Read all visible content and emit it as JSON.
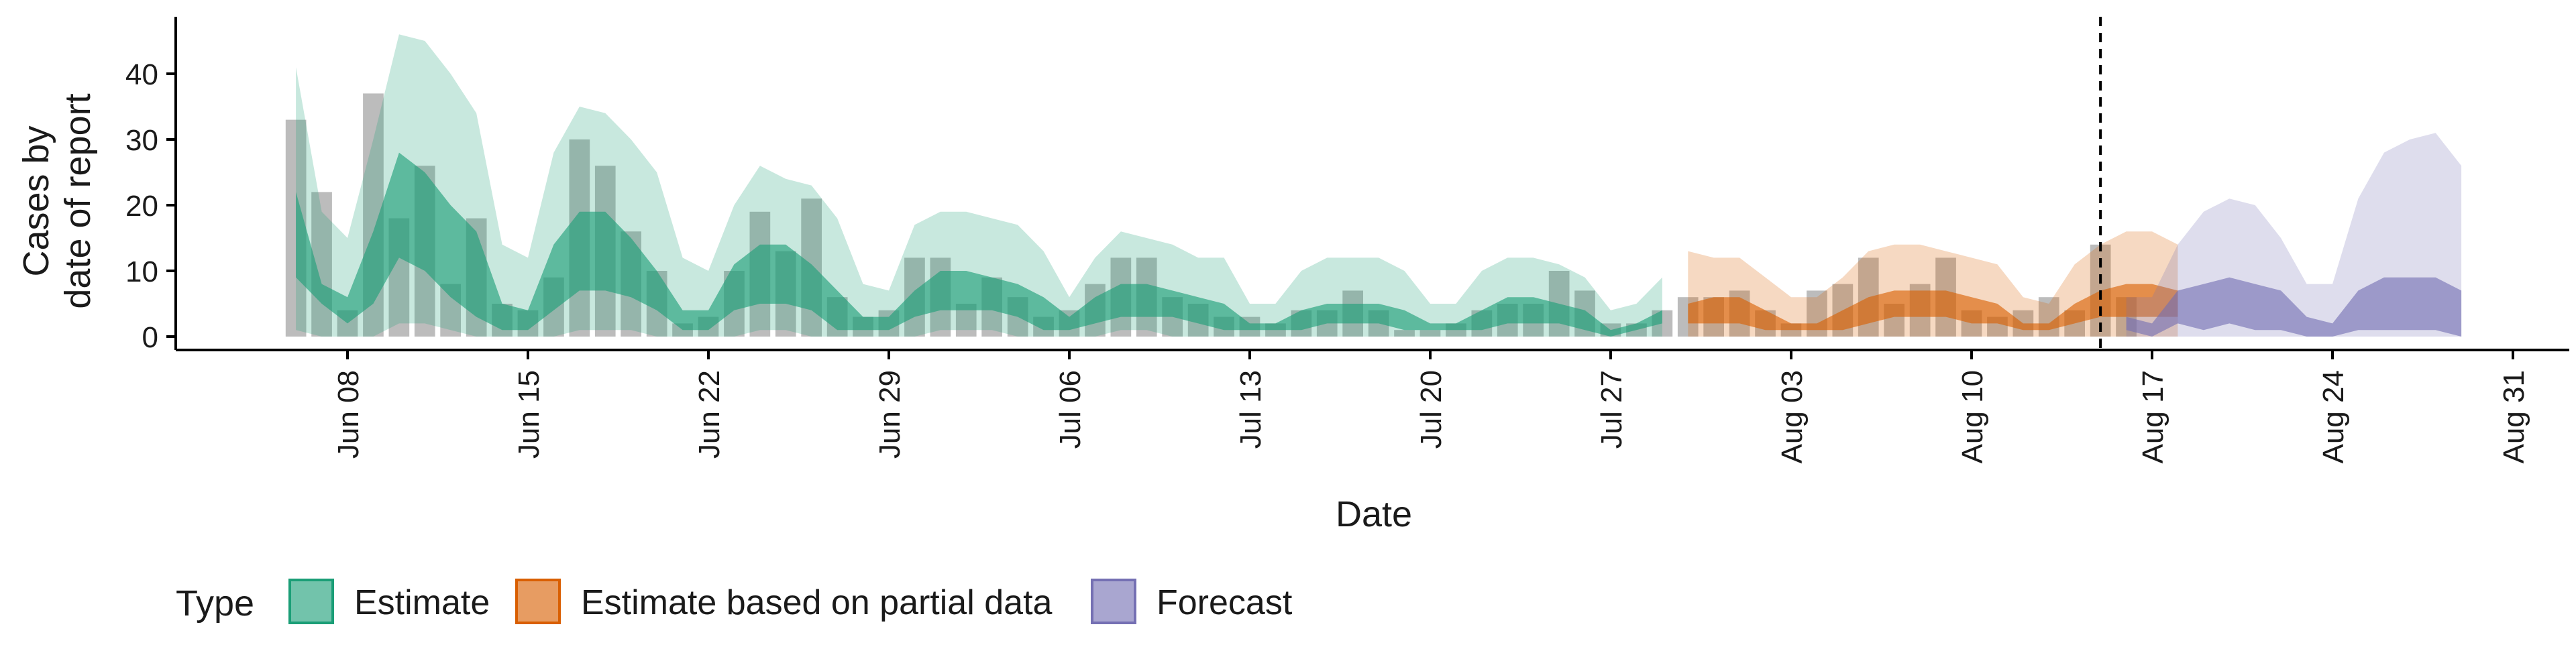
{
  "chart_data": {
    "type": "area",
    "ylabel": [
      "Cases by",
      "date of report"
    ],
    "xlabel": "Date",
    "ylim": [
      -2,
      48
    ],
    "yticks": [
      0,
      10,
      20,
      30,
      40
    ],
    "xlim": [
      "2020-06-02",
      "2020-09-01"
    ],
    "xticks": [
      {
        "date": "2020-06-08",
        "label": "Jun 08"
      },
      {
        "date": "2020-06-15",
        "label": "Jun 15"
      },
      {
        "date": "2020-06-22",
        "label": "Jun 22"
      },
      {
        "date": "2020-06-29",
        "label": "Jun 29"
      },
      {
        "date": "2020-07-06",
        "label": "Jul 06"
      },
      {
        "date": "2020-07-13",
        "label": "Jul 13"
      },
      {
        "date": "2020-07-20",
        "label": "Jul 20"
      },
      {
        "date": "2020-07-27",
        "label": "Jul 27"
      },
      {
        "date": "2020-08-03",
        "label": "Aug 03"
      },
      {
        "date": "2020-08-10",
        "label": "Aug 10"
      },
      {
        "date": "2020-08-17",
        "label": "Aug 17"
      },
      {
        "date": "2020-08-24",
        "label": "Aug 24"
      },
      {
        "date": "2020-08-31",
        "label": "Aug 31"
      }
    ],
    "forecast_start": "2020-08-15",
    "colors": {
      "Estimate": "#1b9e77",
      "Estimate based on partial data": "#d95f02",
      "Forecast": "#7570b3",
      "bars": "#a6a6a6"
    },
    "legend": {
      "title": "Type",
      "position": "bottom",
      "items": [
        "Estimate",
        "Estimate based on partial data",
        "Forecast"
      ]
    },
    "reported_cases": {
      "start": "2020-06-06",
      "values": [
        33,
        22,
        4,
        37,
        18,
        26,
        8,
        18,
        5,
        4,
        9,
        30,
        26,
        16,
        10,
        2,
        3,
        10,
        19,
        13,
        21,
        6,
        3,
        4,
        12,
        12,
        5,
        9,
        6,
        3,
        4,
        8,
        12,
        12,
        6,
        5,
        3,
        3,
        2,
        4,
        4,
        7,
        4,
        1,
        1,
        2,
        4,
        5,
        5,
        10,
        7,
        2,
        2,
        4,
        6,
        6,
        7,
        4,
        2,
        7,
        8,
        12,
        5,
        8,
        12,
        4,
        3,
        4,
        6,
        4,
        14,
        6
      ]
    },
    "series": [
      {
        "name": "Estimate",
        "start": "2020-06-06",
        "upper90": [
          41,
          19,
          15,
          30,
          46,
          45,
          40,
          34,
          14,
          12,
          28,
          35,
          34,
          30,
          25,
          12,
          10,
          20,
          26,
          24,
          23,
          18,
          8,
          7,
          17,
          19,
          19,
          18,
          17,
          13,
          6,
          12,
          16,
          15,
          14,
          12,
          12,
          5,
          5,
          10,
          12,
          12,
          12,
          10,
          5,
          5,
          10,
          12,
          12,
          11,
          9,
          4,
          5,
          9
        ],
        "upper50": [
          22,
          8,
          6,
          16,
          28,
          25,
          20,
          16,
          5,
          4,
          14,
          19,
          19,
          15,
          10,
          4,
          4,
          11,
          14,
          14,
          11,
          7,
          3,
          3,
          7,
          10,
          10,
          9,
          8,
          6,
          3,
          6,
          8,
          8,
          7,
          6,
          5,
          2,
          2,
          4,
          5,
          5,
          5,
          4,
          2,
          2,
          4,
          6,
          6,
          5,
          4,
          1,
          2,
          4
        ],
        "lower50": [
          9,
          5,
          2,
          5,
          12,
          10,
          6,
          3,
          1,
          1,
          4,
          7,
          7,
          6,
          4,
          1,
          1,
          4,
          5,
          5,
          4,
          1,
          1,
          1,
          3,
          4,
          4,
          4,
          3,
          1,
          1,
          2,
          3,
          3,
          3,
          2,
          1,
          1,
          1,
          1,
          2,
          2,
          2,
          1,
          1,
          1,
          1,
          2,
          2,
          2,
          1,
          0,
          1,
          2
        ],
        "lower90": [
          1,
          0,
          0,
          0,
          2,
          2,
          1,
          0,
          0,
          0,
          0,
          1,
          1,
          1,
          0,
          0,
          0,
          0,
          1,
          1,
          0,
          0,
          0,
          0,
          0,
          1,
          1,
          1,
          0,
          0,
          0,
          0,
          1,
          1,
          0,
          0,
          0,
          0,
          0,
          0,
          0,
          0,
          0,
          0,
          0,
          0,
          0,
          0,
          0,
          0,
          0,
          0,
          0,
          0
        ]
      },
      {
        "name": "Estimate based on partial data",
        "start": "2020-07-30",
        "upper90": [
          13,
          12,
          12,
          9,
          6,
          6,
          9,
          13,
          14,
          14,
          13,
          12,
          11,
          6,
          5,
          11,
          14,
          16,
          16,
          14
        ],
        "upper50": [
          5,
          6,
          6,
          4,
          2,
          2,
          4,
          6,
          7,
          7,
          7,
          6,
          5,
          2,
          2,
          5,
          7,
          8,
          8,
          7
        ],
        "lower50": [
          2,
          2,
          2,
          1,
          1,
          1,
          1,
          2,
          3,
          3,
          3,
          2,
          2,
          1,
          1,
          2,
          3,
          3,
          3,
          3
        ],
        "lower90": [
          0,
          0,
          0,
          0,
          0,
          0,
          0,
          0,
          0,
          0,
          0,
          0,
          0,
          0,
          0,
          0,
          0,
          0,
          0,
          0
        ]
      },
      {
        "name": "Forecast",
        "start": "2020-08-16",
        "upper90": [
          6,
          6,
          14,
          19,
          21,
          20,
          15,
          8,
          8,
          21,
          28,
          30,
          31,
          26
        ],
        "upper50": [
          3,
          2,
          7,
          8,
          9,
          8,
          7,
          3,
          2,
          7,
          9,
          9,
          9,
          7
        ],
        "lower50": [
          1,
          0,
          2,
          1,
          2,
          1,
          1,
          0,
          0,
          1,
          1,
          1,
          1,
          0
        ],
        "lower90": [
          0,
          0,
          0,
          0,
          0,
          0,
          0,
          0,
          0,
          0,
          0,
          0,
          0,
          0
        ]
      }
    ]
  }
}
